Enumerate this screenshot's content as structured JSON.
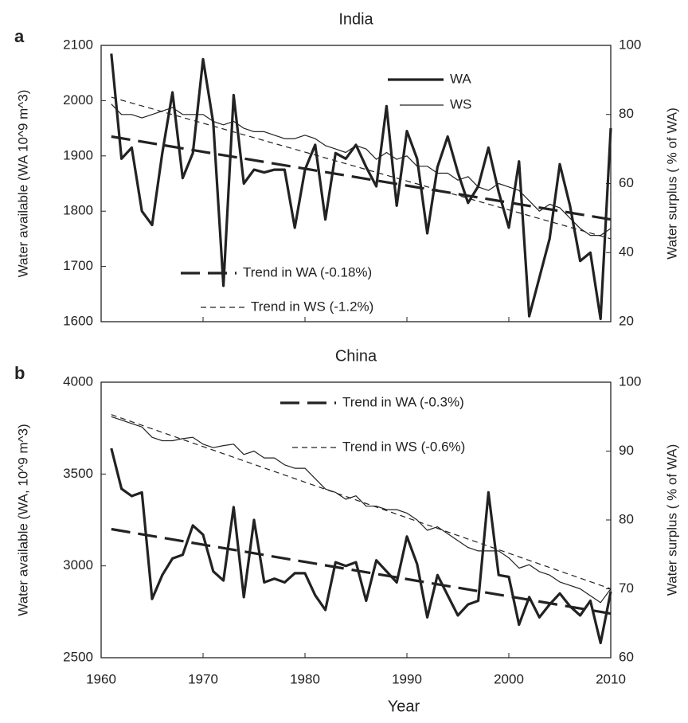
{
  "chart_data": [
    {
      "type": "line",
      "panel": "a",
      "title": "India",
      "y_label": "Water available (WA 10^9 m^3)",
      "y2_label": "Water surplus ( % of WA)",
      "xlim": [
        1960,
        2010
      ],
      "ylim": [
        1600,
        2100
      ],
      "yticks": [
        1600,
        1700,
        1800,
        1900,
        2000,
        2100
      ],
      "y2lim": [
        20,
        100
      ],
      "y2ticks": [
        20,
        40,
        60,
        80,
        100
      ],
      "legend": "upper right",
      "x": [
        1961,
        1962,
        1963,
        1964,
        1965,
        1966,
        1967,
        1968,
        1969,
        1970,
        1971,
        1972,
        1973,
        1974,
        1975,
        1976,
        1977,
        1978,
        1979,
        1980,
        1981,
        1982,
        1983,
        1984,
        1985,
        1986,
        1987,
        1988,
        1989,
        1990,
        1991,
        1992,
        1993,
        1994,
        1995,
        1996,
        1997,
        1998,
        1999,
        2000,
        2001,
        2002,
        2003,
        2004,
        2005,
        2006,
        2007,
        2008,
        2009,
        2010
      ],
      "series": [
        {
          "name": "WA",
          "color": "#222222",
          "line_width": "thick",
          "line_style": "solid",
          "values": [
            2085,
            1895,
            1915,
            1800,
            1775,
            1905,
            2015,
            1860,
            1905,
            2075,
            1960,
            1665,
            2010,
            1850,
            1875,
            1870,
            1875,
            1875,
            1770,
            1875,
            1920,
            1785,
            1905,
            1895,
            1920,
            1880,
            1845,
            1990,
            1810,
            1945,
            1895,
            1760,
            1880,
            1935,
            1870,
            1815,
            1845,
            1915,
            1835,
            1770,
            1890,
            1610,
            1680,
            1750,
            1885,
            1810,
            1710,
            1725,
            1605,
            1950
          ]
        },
        {
          "name": "WS",
          "color": "#222222",
          "line_width": "thin",
          "line_style": "solid",
          "axis": "y2",
          "values": [
            83,
            80,
            80,
            79,
            80,
            81,
            82,
            80,
            80,
            80,
            78,
            77,
            78,
            76,
            75,
            75,
            74,
            73,
            73,
            74,
            73,
            71,
            70,
            69,
            71,
            70,
            67,
            69,
            67,
            68,
            65,
            65,
            63,
            63,
            61,
            62,
            59,
            58,
            60,
            59,
            58,
            55,
            52,
            54,
            53,
            50,
            47,
            45,
            45,
            47
          ]
        },
        {
          "name": "Trend in WA (-0.18%)",
          "color": "#222222",
          "line_width": "thick",
          "line_style": "dashed",
          "x": [
            1961,
            2010
          ],
          "values": [
            1935,
            1785
          ]
        },
        {
          "name": "Trend in WS (-1.2%)",
          "color": "#222222",
          "line_width": "thin",
          "line_style": "dashed",
          "axis": "y2",
          "x": [
            1961,
            2010
          ],
          "values": [
            85,
            44
          ]
        }
      ]
    },
    {
      "type": "line",
      "panel": "b",
      "title": "China",
      "y_label": "Water available (WA, 10^9 m^3)",
      "y2_label": "Water surplus ( % of WA)",
      "x_label": "Year",
      "xlim": [
        1960,
        2010
      ],
      "xticks": [
        1960,
        1970,
        1980,
        1990,
        2000,
        2010
      ],
      "ylim": [
        2500,
        4000
      ],
      "yticks": [
        2500,
        3000,
        3500,
        4000
      ],
      "y2lim": [
        60,
        100
      ],
      "y2ticks": [
        60,
        70,
        80,
        90,
        100
      ],
      "legend": "upper right",
      "x": [
        1961,
        1962,
        1963,
        1964,
        1965,
        1966,
        1967,
        1968,
        1969,
        1970,
        1971,
        1972,
        1973,
        1974,
        1975,
        1976,
        1977,
        1978,
        1979,
        1980,
        1981,
        1982,
        1983,
        1984,
        1985,
        1986,
        1987,
        1988,
        1989,
        1990,
        1991,
        1992,
        1993,
        1994,
        1995,
        1996,
        1997,
        1998,
        1999,
        2000,
        2001,
        2002,
        2003,
        2004,
        2005,
        2006,
        2007,
        2008,
        2009,
        2010
      ],
      "series": [
        {
          "color": "#222222",
          "line_width": "thick",
          "line_style": "solid",
          "values": [
            3640,
            3420,
            3380,
            3400,
            2820,
            2950,
            3040,
            3060,
            3220,
            3170,
            2970,
            2920,
            3320,
            2830,
            3250,
            2910,
            2930,
            2910,
            2960,
            2960,
            2840,
            2760,
            3020,
            3000,
            3020,
            2810,
            3030,
            2970,
            2910,
            3160,
            3010,
            2720,
            2950,
            2840,
            2730,
            2790,
            2810,
            3400,
            2950,
            2940,
            2680,
            2830,
            2720,
            2790,
            2850,
            2780,
            2730,
            2810,
            2580,
            2860
          ]
        },
        {
          "color": "#222222",
          "line_width": "thin",
          "line_style": "solid",
          "axis": "y2",
          "values": [
            95,
            94.5,
            94,
            93.5,
            92,
            91.5,
            91.5,
            91.8,
            92,
            91,
            90.5,
            90.8,
            91,
            89.5,
            90,
            89,
            89,
            88,
            87.5,
            87.5,
            86,
            84.5,
            84,
            83,
            83.5,
            82,
            82,
            81.5,
            81.5,
            81,
            80,
            78.5,
            79,
            78,
            77,
            76,
            75.5,
            75.5,
            75.5,
            74.5,
            73,
            73.5,
            72.5,
            72,
            71,
            70.5,
            70,
            69,
            68,
            70
          ]
        },
        {
          "name": "Trend in WA (-0.3%)",
          "color": "#222222",
          "line_width": "thick",
          "line_style": "dashed",
          "x": [
            1961,
            2010
          ],
          "values": [
            3200,
            2740
          ]
        },
        {
          "name": "Trend in WS (-0.6%)",
          "color": "#222222",
          "line_width": "thin",
          "line_style": "dashed",
          "axis": "y2",
          "x": [
            1961,
            2010
          ],
          "values": [
            95.3,
            70
          ]
        }
      ]
    }
  ]
}
